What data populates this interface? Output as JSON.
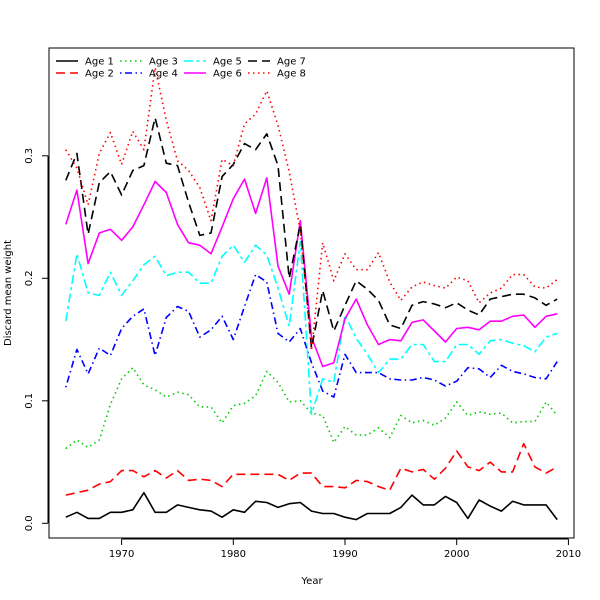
{
  "chart_data": {
    "type": "line",
    "title": "",
    "xlabel": "Year",
    "ylabel": "Discard mean weight",
    "xlim": [
      1963.5,
      2010.5
    ],
    "ylim": [
      -0.012,
      0.388
    ],
    "xticks": [
      1970,
      1980,
      1990,
      2000,
      2010
    ],
    "yticks": [
      0.0,
      0.1,
      0.2,
      0.3
    ],
    "ytick_labels": [
      "0.0",
      "0.1",
      "0.2",
      "0.3"
    ],
    "grid": false,
    "legend_placement": "top-left",
    "x": [
      1965,
      1966,
      1967,
      1968,
      1969,
      1970,
      1971,
      1972,
      1973,
      1974,
      1975,
      1976,
      1977,
      1978,
      1979,
      1980,
      1981,
      1982,
      1983,
      1984,
      1985,
      1986,
      1987,
      1988,
      1989,
      1990,
      1991,
      1992,
      1993,
      1994,
      1995,
      1996,
      1997,
      1998,
      1999,
      2000,
      2001,
      2002,
      2003,
      2004,
      2005,
      2006,
      2007,
      2008,
      2009
    ],
    "series": [
      {
        "name": "Age 1",
        "color": "#000000",
        "dash": "solid",
        "values": [
          0.005,
          0.009,
          0.004,
          0.004,
          0.009,
          0.009,
          0.011,
          0.025,
          0.009,
          0.009,
          0.015,
          0.013,
          0.011,
          0.01,
          0.005,
          0.011,
          0.009,
          0.018,
          0.017,
          0.013,
          0.016,
          0.017,
          0.01,
          0.008,
          0.008,
          0.005,
          0.003,
          0.008,
          0.008,
          0.008,
          0.013,
          0.023,
          0.015,
          0.015,
          0.022,
          0.017,
          0.004,
          0.019,
          0.014,
          0.01,
          0.018,
          0.015,
          0.015,
          0.015,
          0.003
        ]
      },
      {
        "name": "Age 2",
        "color": "#ff0000",
        "dash": "longdash",
        "values": [
          0.023,
          0.025,
          0.027,
          0.032,
          0.034,
          0.043,
          0.043,
          0.038,
          0.043,
          0.037,
          0.043,
          0.035,
          0.036,
          0.035,
          0.03,
          0.04,
          0.04,
          0.04,
          0.04,
          0.04,
          0.035,
          0.041,
          0.041,
          0.03,
          0.03,
          0.029,
          0.035,
          0.034,
          0.03,
          0.027,
          0.045,
          0.042,
          0.044,
          0.036,
          0.045,
          0.059,
          0.046,
          0.043,
          0.05,
          0.042,
          0.042,
          0.065,
          0.046,
          0.041,
          0.046
        ]
      },
      {
        "name": "Age 3",
        "color": "#00cd00",
        "dash": "dotted",
        "values": [
          0.061,
          0.068,
          0.062,
          0.068,
          0.097,
          0.118,
          0.127,
          0.113,
          0.109,
          0.103,
          0.107,
          0.105,
          0.095,
          0.095,
          0.082,
          0.096,
          0.098,
          0.104,
          0.124,
          0.115,
          0.099,
          0.1,
          0.09,
          0.088,
          0.066,
          0.079,
          0.072,
          0.072,
          0.078,
          0.07,
          0.088,
          0.082,
          0.084,
          0.08,
          0.086,
          0.099,
          0.088,
          0.091,
          0.089,
          0.09,
          0.082,
          0.083,
          0.083,
          0.099,
          0.088
        ]
      },
      {
        "name": "Age 4",
        "color": "#0000ff",
        "dash": "dotdash",
        "values": [
          0.111,
          0.142,
          0.122,
          0.143,
          0.137,
          0.159,
          0.169,
          0.175,
          0.137,
          0.168,
          0.177,
          0.173,
          0.152,
          0.158,
          0.169,
          0.15,
          0.177,
          0.203,
          0.197,
          0.155,
          0.148,
          0.159,
          0.131,
          0.108,
          0.103,
          0.138,
          0.123,
          0.123,
          0.123,
          0.118,
          0.117,
          0.117,
          0.119,
          0.117,
          0.112,
          0.116,
          0.127,
          0.126,
          0.119,
          0.129,
          0.124,
          0.122,
          0.119,
          0.118,
          0.132
        ]
      },
      {
        "name": "Age 5",
        "color": "#00ffff",
        "dash": "twodash",
        "values": [
          0.165,
          0.22,
          0.188,
          0.186,
          0.205,
          0.186,
          0.198,
          0.211,
          0.218,
          0.202,
          0.205,
          0.205,
          0.196,
          0.196,
          0.218,
          0.227,
          0.213,
          0.227,
          0.219,
          0.192,
          0.161,
          0.23,
          0.089,
          0.118,
          0.115,
          0.17,
          0.151,
          0.138,
          0.123,
          0.134,
          0.134,
          0.146,
          0.146,
          0.132,
          0.132,
          0.146,
          0.146,
          0.138,
          0.149,
          0.15,
          0.147,
          0.145,
          0.14,
          0.152,
          0.155
        ]
      },
      {
        "name": "Age 6",
        "color": "#ff00ff",
        "dash": "solid",
        "values": [
          0.244,
          0.272,
          0.212,
          0.237,
          0.24,
          0.231,
          0.242,
          0.26,
          0.279,
          0.27,
          0.244,
          0.229,
          0.227,
          0.22,
          0.242,
          0.265,
          0.281,
          0.253,
          0.282,
          0.21,
          0.187,
          0.247,
          0.152,
          0.128,
          0.131,
          0.167,
          0.183,
          0.162,
          0.146,
          0.15,
          0.149,
          0.164,
          0.166,
          0.157,
          0.148,
          0.159,
          0.16,
          0.158,
          0.165,
          0.165,
          0.169,
          0.17,
          0.16,
          0.169,
          0.171
        ]
      },
      {
        "name": "Age 7",
        "color": "#000000",
        "dash": "longdash",
        "values": [
          0.28,
          0.302,
          0.236,
          0.278,
          0.287,
          0.268,
          0.288,
          0.292,
          0.331,
          0.294,
          0.292,
          0.262,
          0.235,
          0.237,
          0.283,
          0.293,
          0.31,
          0.305,
          0.318,
          0.292,
          0.2,
          0.244,
          0.143,
          0.19,
          0.157,
          0.178,
          0.198,
          0.191,
          0.182,
          0.162,
          0.159,
          0.178,
          0.181,
          0.179,
          0.176,
          0.18,
          0.174,
          0.17,
          0.183,
          0.185,
          0.187,
          0.187,
          0.184,
          0.178,
          0.183
        ]
      },
      {
        "name": "Age 8",
        "color": "#ff0000",
        "dash": "dotted",
        "values": [
          0.305,
          0.29,
          0.26,
          0.302,
          0.319,
          0.293,
          0.32,
          0.305,
          0.372,
          0.329,
          0.296,
          0.288,
          0.274,
          0.247,
          0.297,
          0.292,
          0.326,
          0.334,
          0.353,
          0.325,
          0.287,
          0.239,
          0.141,
          0.229,
          0.198,
          0.22,
          0.207,
          0.207,
          0.221,
          0.197,
          0.182,
          0.193,
          0.197,
          0.194,
          0.192,
          0.201,
          0.198,
          0.18,
          0.188,
          0.192,
          0.203,
          0.203,
          0.193,
          0.192,
          0.199
        ]
      }
    ]
  }
}
